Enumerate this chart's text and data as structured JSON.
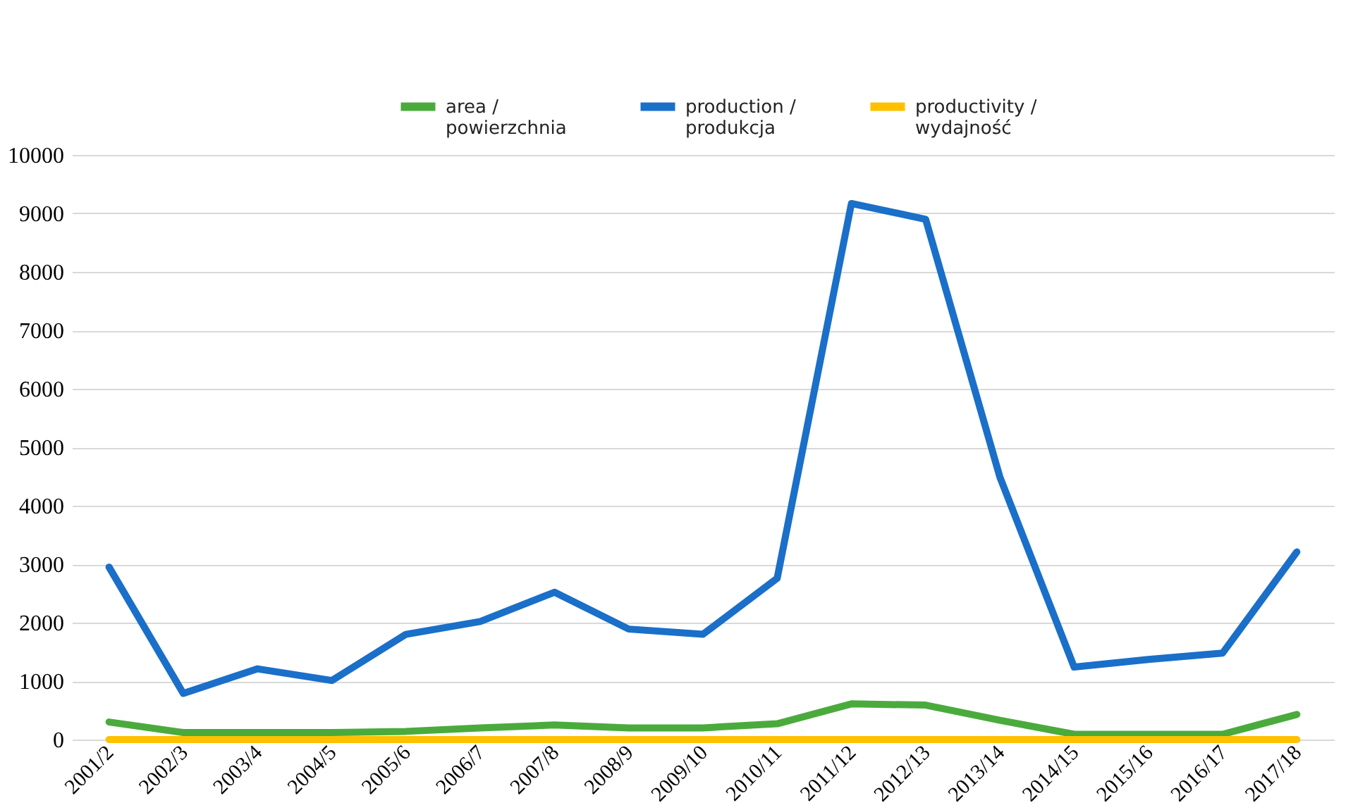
{
  "chart_data": {
    "type": "line",
    "categories": [
      "2001/2",
      "2002/3",
      "2003/4",
      "2004/5",
      "2005/6",
      "2006/7",
      "2007/8",
      "2008/9",
      "2009/10",
      "2010/11",
      "2011/12",
      "2012/13",
      "2013/14",
      "2014/15",
      "2015/16",
      "2016/17",
      "2017/18"
    ],
    "series": [
      {
        "name": "area / powierzchnia",
        "color": "#4aab3c",
        "values": [
          300,
          120,
          120,
          120,
          140,
          200,
          250,
          200,
          200,
          270,
          610,
          590,
          330,
          90,
          90,
          90,
          430
        ]
      },
      {
        "name": "production / produkcja",
        "color": "#1a6fc9",
        "values": [
          2950,
          790,
          1210,
          1010,
          1800,
          2020,
          2520,
          1890,
          1800,
          2760,
          9170,
          8900,
          4490,
          1240,
          1370,
          1480,
          3210
        ]
      },
      {
        "name": "productivity / wydajność",
        "color": "#ffc000",
        "values": [
          0,
          0,
          0,
          0,
          0,
          0,
          0,
          0,
          0,
          0,
          0,
          0,
          0,
          0,
          0,
          0,
          0
        ]
      }
    ],
    "ylim": [
      0,
      10000
    ],
    "yticks": [
      0,
      1000,
      2000,
      3000,
      4000,
      5000,
      6000,
      7000,
      8000,
      9000,
      10000
    ],
    "grid": "y",
    "legend": "top",
    "marker": "none",
    "line_style": "solid"
  }
}
